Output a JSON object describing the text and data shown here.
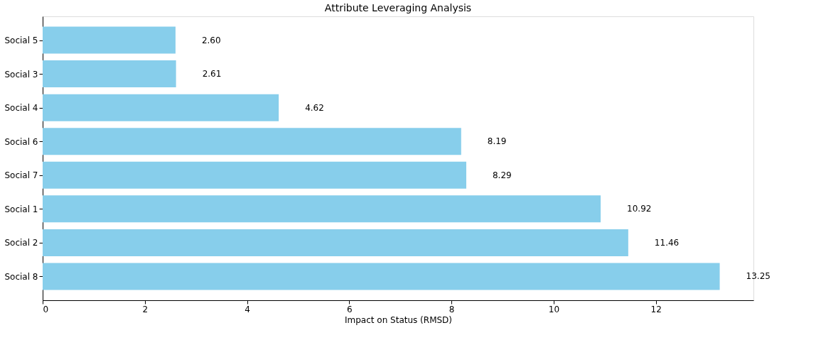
{
  "chart_data": {
    "type": "bar",
    "orientation": "horizontal",
    "title": "Attribute Leveraging Analysis",
    "xlabel": "Impact on Status (RMSD)",
    "categories": [
      "Social 5",
      "Social 3",
      "Social 4",
      "Social 6",
      "Social 7",
      "Social 1",
      "Social 2",
      "Social 8"
    ],
    "values": [
      2.6,
      2.61,
      4.62,
      8.19,
      8.29,
      10.92,
      11.46,
      13.25
    ],
    "value_labels": [
      "2.60",
      "2.61",
      "4.62",
      "8.19",
      "8.29",
      "10.92",
      "11.46",
      "13.25"
    ],
    "color": "#87ceeb",
    "xlim": [
      0,
      13.91
    ],
    "xticks": [
      0,
      2,
      4,
      6,
      8,
      10,
      12
    ],
    "grid": false
  }
}
